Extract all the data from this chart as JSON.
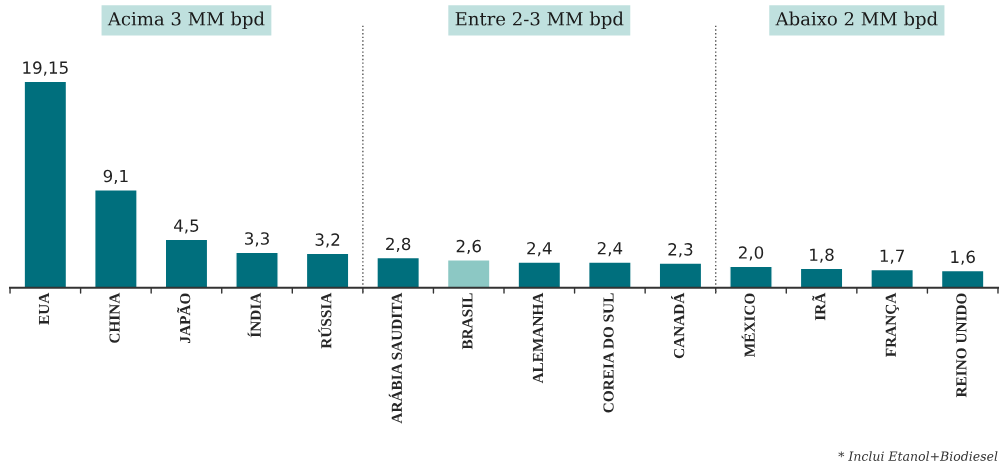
{
  "chart_data": {
    "type": "bar",
    "categories": [
      "EUA",
      "CHINA",
      "JAPÃO",
      "ÍNDIA",
      "RÚSSIA",
      "ARÁBIA SAUDITA",
      "BRASIL",
      "ALEMANHA",
      "COREIA DO SUL",
      "CANADÁ",
      "MÉXICO",
      "IRÃ",
      "FRANÇA",
      "REINO UNIDO"
    ],
    "values": [
      19.15,
      9.1,
      4.5,
      3.3,
      3.2,
      2.8,
      2.6,
      2.4,
      2.4,
      2.3,
      2.0,
      1.8,
      1.7,
      1.6
    ],
    "colors": [
      "#006f7d",
      "#006f7d",
      "#006f7d",
      "#006f7d",
      "#006f7d",
      "#006f7d",
      "#8cc8c4",
      "#006f7d",
      "#006f7d",
      "#006f7d",
      "#006f7d",
      "#006f7d",
      "#006f7d",
      "#006f7d"
    ],
    "value_labels": [
      "19,15",
      "9,1",
      "4,5",
      "3,3",
      "3,2",
      "2,8",
      "2,6",
      "2,4",
      "2,4",
      "2,3",
      "2,0",
      "1,8",
      "1,7",
      "1,6"
    ],
    "annotations": [
      "Acima 3 MM bpd",
      "Entre 2-3 MM bpd",
      "Abaixo 2 MM bpd",
      "* Inclui Etanol+Biodiesel"
    ],
    "tick_labels": "x",
    "grid": false,
    "legend": false
  }
}
